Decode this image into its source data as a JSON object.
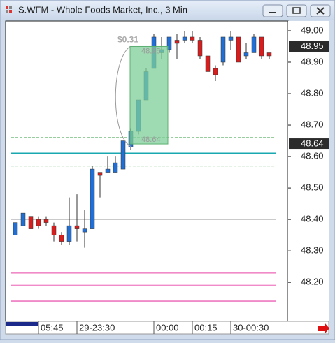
{
  "window": {
    "title": "S.WFM - Whole Foods Market, Inc., 3 Min"
  },
  "chart_data": {
    "type": "candlestick",
    "categories": [
      null,
      null,
      null,
      "05:45",
      null,
      null,
      null,
      null,
      "29-23:30",
      null,
      null,
      null,
      null,
      null,
      null,
      null,
      null,
      null,
      "00:00",
      null,
      null,
      null,
      null,
      "00:15",
      null,
      null,
      null,
      null,
      "30-00:30",
      null,
      null,
      null,
      null,
      null
    ],
    "open": [
      48.35,
      48.38,
      48.41,
      48.4,
      48.4,
      48.38,
      48.35,
      48.33,
      48.38,
      48.36,
      48.37,
      48.55,
      48.55,
      48.55,
      48.56,
      48.63,
      48.68,
      48.78,
      48.88,
      48.93,
      48.94,
      48.97,
      48.97,
      48.98,
      48.97,
      48.92,
      48.88,
      48.9,
      48.97,
      48.98,
      48.92,
      48.93,
      48.98,
      48.93
    ],
    "high": [
      48.39,
      48.42,
      48.41,
      48.41,
      48.41,
      48.39,
      48.36,
      48.47,
      48.48,
      48.43,
      48.57,
      48.55,
      48.6,
      48.6,
      48.65,
      48.69,
      48.78,
      48.88,
      48.99,
      48.98,
      48.98,
      48.99,
      49.0,
      49.0,
      48.98,
      48.92,
      48.89,
      48.98,
      49.0,
      48.98,
      48.96,
      48.99,
      48.98,
      48.93
    ],
    "low": [
      48.35,
      48.38,
      48.37,
      48.37,
      48.38,
      48.33,
      48.32,
      48.32,
      48.33,
      48.31,
      48.37,
      48.47,
      48.55,
      48.55,
      48.56,
      48.62,
      48.67,
      48.78,
      48.88,
      48.91,
      48.93,
      48.91,
      48.96,
      48.96,
      48.91,
      48.87,
      48.84,
      48.89,
      48.94,
      48.9,
      48.91,
      48.93,
      48.91,
      48.91
    ],
    "close": [
      48.39,
      48.42,
      48.37,
      48.38,
      48.39,
      48.35,
      48.33,
      48.38,
      48.37,
      48.37,
      48.56,
      48.54,
      48.56,
      48.58,
      48.65,
      48.68,
      48.78,
      48.87,
      48.98,
      48.94,
      48.98,
      48.96,
      48.98,
      48.97,
      48.92,
      48.87,
      48.86,
      48.98,
      48.98,
      48.9,
      48.93,
      48.98,
      48.92,
      48.92
    ],
    "up_color": "#1f6fd6",
    "down_color": "#d61e1e",
    "ylim": [
      48.076,
      49.031
    ],
    "yticks": [
      {
        "value": 49.0,
        "label": "49.00"
      },
      {
        "value": 48.9,
        "label": "48.90"
      },
      {
        "value": 48.8,
        "label": "48.80"
      },
      {
        "value": 48.7,
        "label": "48.70"
      },
      {
        "value": 48.6,
        "label": "48.60"
      },
      {
        "value": 48.5,
        "label": "48.50"
      },
      {
        "value": 48.4,
        "label": "48.40"
      },
      {
        "value": 48.3,
        "label": "48.30"
      },
      {
        "value": 48.2,
        "label": "48.20"
      }
    ],
    "levels": [
      {
        "value": 48.66,
        "color": "#2e9e3e",
        "style": "dashed"
      },
      {
        "value": 48.57,
        "color": "#2e9e3e",
        "style": "dashed"
      },
      {
        "value": 48.61,
        "color": "#1aa8b0",
        "style": "solid"
      },
      {
        "value": 48.4,
        "color": "#aaaaaa",
        "style": "solid"
      },
      {
        "value": 48.23,
        "color": "#f08ac8",
        "style": "solid"
      },
      {
        "value": 48.19,
        "color": "#f08ac8",
        "style": "solid"
      },
      {
        "value": 48.14,
        "color": "#f08ac8",
        "style": "solid"
      }
    ],
    "price_markers": [
      {
        "value": 48.95,
        "label": "48.95"
      },
      {
        "value": 48.64,
        "label": "48.64"
      }
    ],
    "measure": {
      "from": 48.64,
      "to": 48.95,
      "label": "$0.31",
      "from_label": "48.64",
      "to_label": "48.95"
    }
  }
}
